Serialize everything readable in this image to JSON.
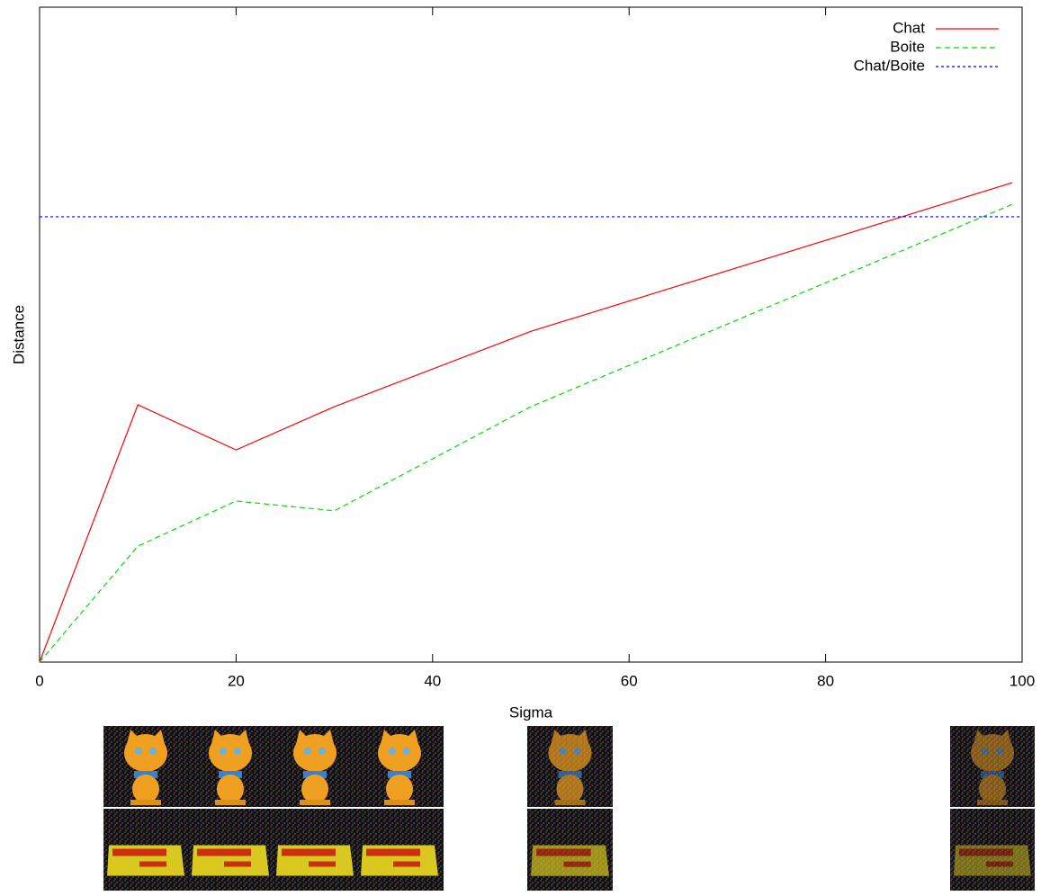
{
  "chart_data": {
    "type": "line",
    "xlabel": "Sigma",
    "ylabel": "Distance",
    "xlim": [
      0,
      100
    ],
    "xticks": [
      0,
      20,
      40,
      60,
      80,
      100
    ],
    "ylim": [
      0,
      1
    ],
    "legend": "top right",
    "series": [
      {
        "name": "Chat",
        "color": "#ff0000",
        "dash": "solid",
        "x": [
          0,
          10,
          20,
          30,
          50,
          99
        ],
        "values": [
          0,
          0.393,
          0.324,
          0.39,
          0.505,
          0.732
        ]
      },
      {
        "name": "Boite",
        "color": "#00dd00",
        "dash": "dashed",
        "x": [
          0,
          10,
          20,
          30,
          50,
          99
        ],
        "values": [
          0,
          0.177,
          0.246,
          0.231,
          0.39,
          0.699
        ]
      },
      {
        "name": "Chat/Boite",
        "color": "#0000ff",
        "dash": "dotted",
        "x": [
          0,
          100
        ],
        "values": [
          0.68,
          0.68
        ]
      }
    ]
  }
}
